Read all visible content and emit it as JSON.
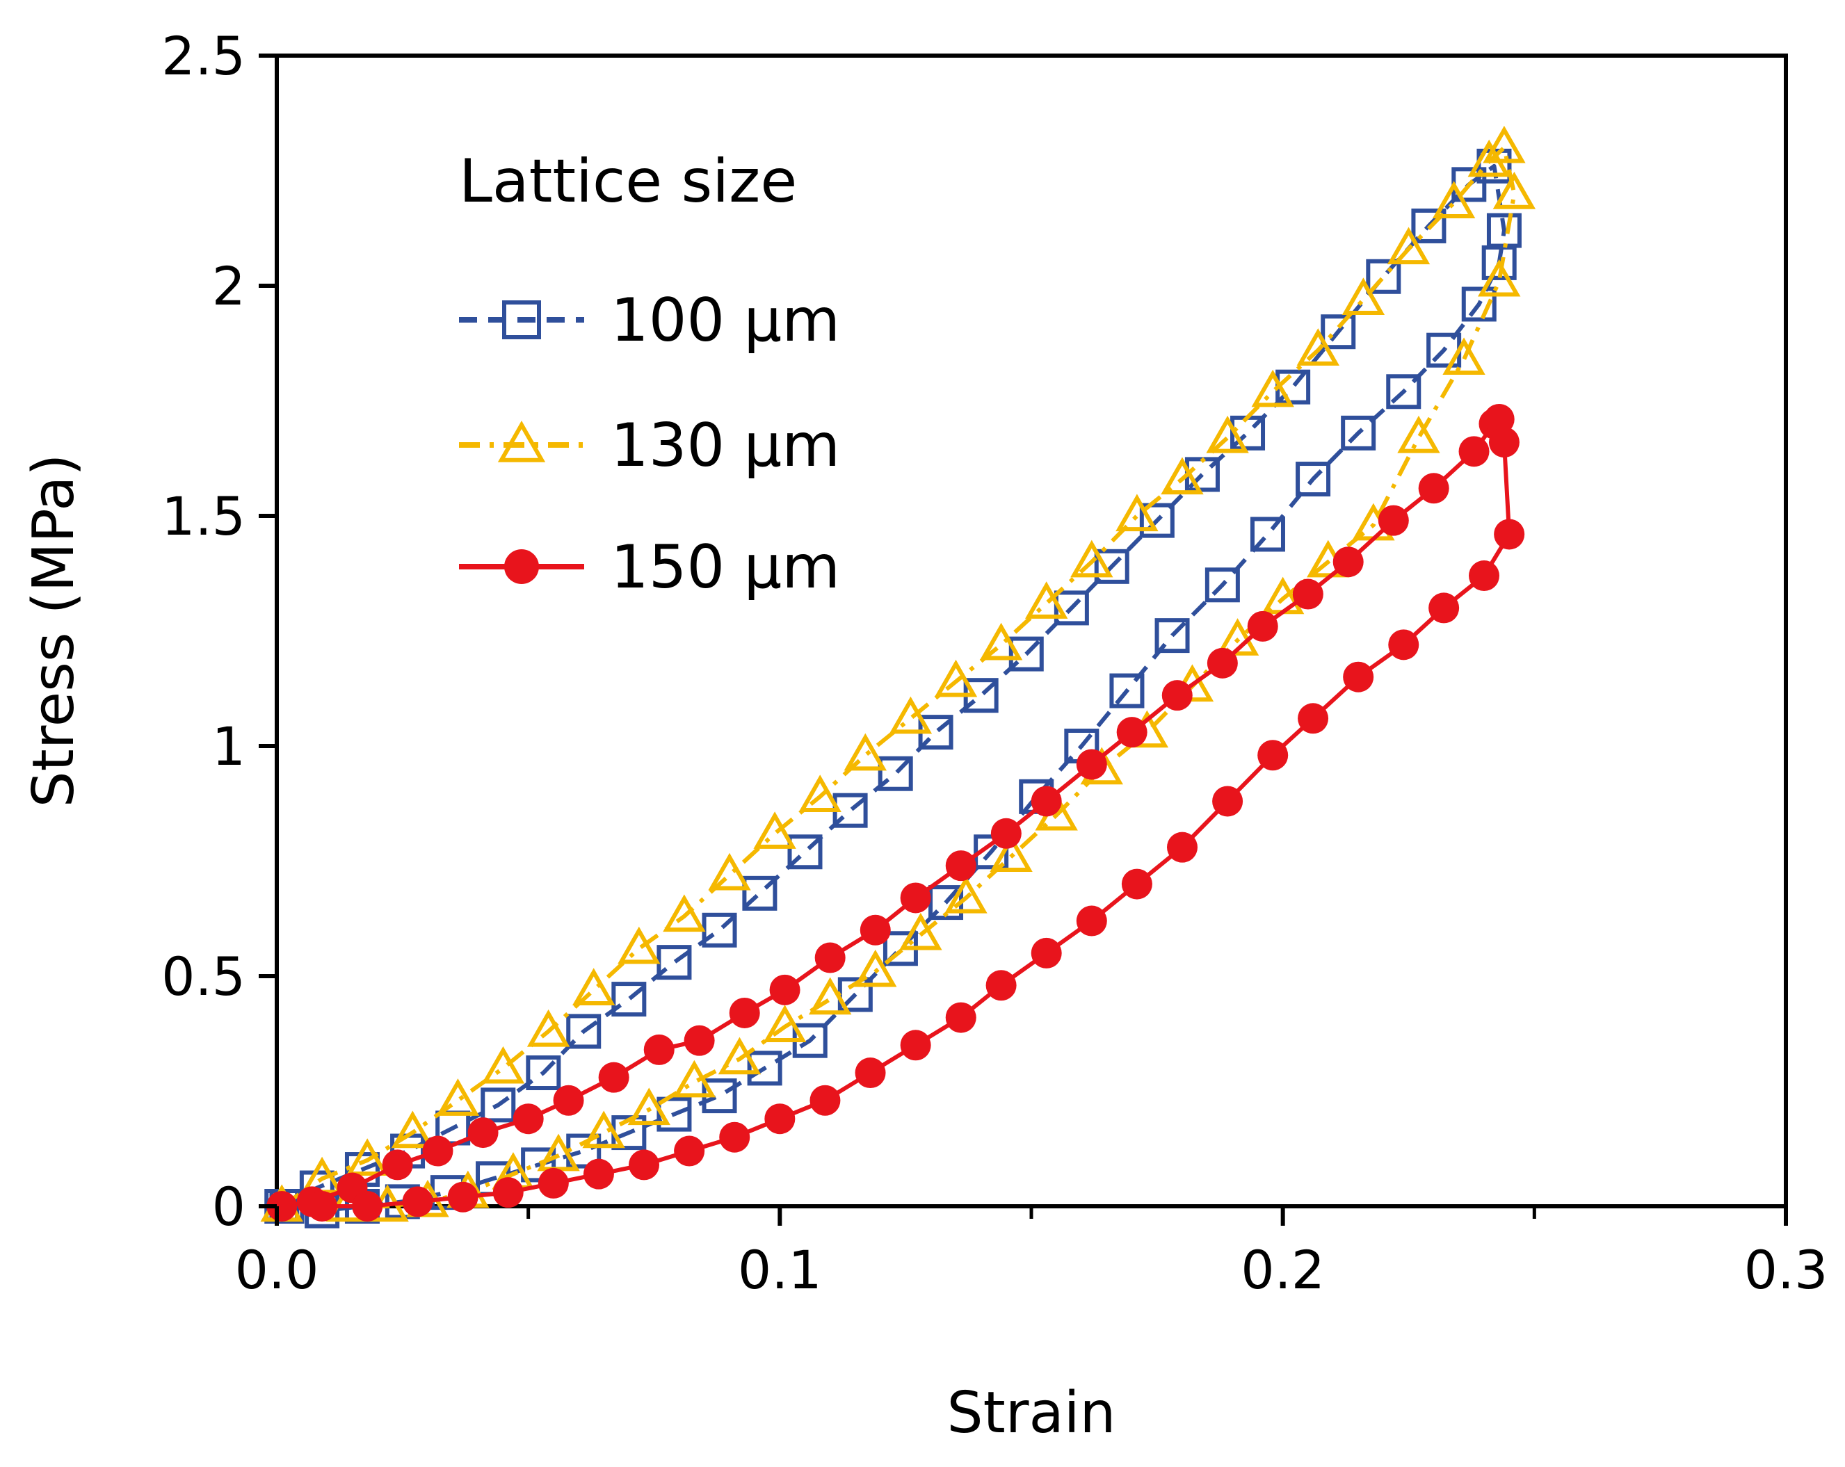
{
  "chart_data": {
    "type": "line",
    "xlabel": "Strain",
    "ylabel": "Stress (MPa)",
    "xlim": [
      0,
      0.3
    ],
    "ylim": [
      0,
      2.5
    ],
    "x_ticks": [
      "0.0",
      "0.1",
      "0.2",
      "0.3"
    ],
    "y_ticks": [
      "0",
      "0.5",
      "1",
      "1.5",
      "2",
      "2.5"
    ],
    "grid": false,
    "legend": {
      "title": "Lattice size",
      "position": "top-left"
    },
    "series": [
      {
        "name": "100 µm",
        "color": "#2F4F9B",
        "marker": "open-square",
        "line": "dashed",
        "x": [
          0.001,
          0.008,
          0.017,
          0.026,
          0.035,
          0.044,
          0.053,
          0.061,
          0.07,
          0.079,
          0.088,
          0.096,
          0.105,
          0.114,
          0.123,
          0.131,
          0.14,
          0.149,
          0.158,
          0.166,
          0.175,
          0.184,
          0.193,
          0.202,
          0.211,
          0.22,
          0.229,
          0.237,
          0.242,
          0.244,
          0.243,
          0.239,
          0.232,
          0.224,
          0.215,
          0.206,
          0.197,
          0.188,
          0.178,
          0.169,
          0.16,
          0.151,
          0.142,
          0.133,
          0.124,
          0.115,
          0.106,
          0.097,
          0.088,
          0.079,
          0.07,
          0.061,
          0.052,
          0.043,
          0.034,
          0.025,
          0.017,
          0.009,
          0.002
        ],
        "y": [
          0.0,
          0.04,
          0.08,
          0.12,
          0.17,
          0.22,
          0.29,
          0.38,
          0.45,
          0.53,
          0.6,
          0.68,
          0.77,
          0.86,
          0.94,
          1.03,
          1.11,
          1.2,
          1.3,
          1.39,
          1.49,
          1.59,
          1.68,
          1.78,
          1.9,
          2.02,
          2.13,
          2.22,
          2.26,
          2.12,
          2.05,
          1.96,
          1.86,
          1.77,
          1.68,
          1.58,
          1.46,
          1.35,
          1.24,
          1.12,
          1.0,
          0.89,
          0.77,
          0.66,
          0.56,
          0.46,
          0.36,
          0.3,
          0.24,
          0.2,
          0.16,
          0.12,
          0.09,
          0.06,
          0.03,
          0.01,
          0.0,
          -0.01,
          0.0
        ]
      },
      {
        "name": "130 µm",
        "color": "#F5B800",
        "marker": "open-triangle",
        "line": "dash-dot",
        "x": [
          0.001,
          0.009,
          0.018,
          0.027,
          0.036,
          0.045,
          0.054,
          0.063,
          0.072,
          0.081,
          0.09,
          0.099,
          0.108,
          0.117,
          0.126,
          0.135,
          0.144,
          0.153,
          0.162,
          0.171,
          0.18,
          0.189,
          0.198,
          0.207,
          0.216,
          0.225,
          0.234,
          0.241,
          0.244,
          0.246,
          0.243,
          0.236,
          0.227,
          0.218,
          0.209,
          0.2,
          0.191,
          0.182,
          0.173,
          0.164,
          0.155,
          0.146,
          0.137,
          0.128,
          0.119,
          0.11,
          0.101,
          0.092,
          0.083,
          0.074,
          0.065,
          0.056,
          0.047,
          0.038,
          0.03,
          0.022,
          0.014
        ],
        "y": [
          0.0,
          0.06,
          0.1,
          0.16,
          0.23,
          0.3,
          0.38,
          0.47,
          0.56,
          0.63,
          0.72,
          0.81,
          0.89,
          0.98,
          1.06,
          1.14,
          1.22,
          1.31,
          1.4,
          1.5,
          1.58,
          1.67,
          1.77,
          1.86,
          1.97,
          2.08,
          2.18,
          2.27,
          2.3,
          2.2,
          2.01,
          1.84,
          1.67,
          1.48,
          1.4,
          1.32,
          1.23,
          1.13,
          1.03,
          0.95,
          0.85,
          0.76,
          0.67,
          0.59,
          0.51,
          0.45,
          0.39,
          0.32,
          0.27,
          0.21,
          0.16,
          0.11,
          0.07,
          0.03,
          0.01,
          0.0,
          0.0
        ]
      },
      {
        "name": "150 µm",
        "color": "#E8141C",
        "marker": "filled-circle",
        "line": "solid",
        "x": [
          0.001,
          0.007,
          0.015,
          0.024,
          0.032,
          0.041,
          0.05,
          0.058,
          0.067,
          0.076,
          0.084,
          0.093,
          0.101,
          0.11,
          0.119,
          0.127,
          0.136,
          0.145,
          0.153,
          0.162,
          0.17,
          0.179,
          0.188,
          0.196,
          0.205,
          0.213,
          0.222,
          0.23,
          0.238,
          0.242,
          0.243,
          0.244,
          0.245,
          0.24,
          0.232,
          0.224,
          0.215,
          0.206,
          0.198,
          0.189,
          0.18,
          0.171,
          0.162,
          0.153,
          0.144,
          0.136,
          0.127,
          0.118,
          0.109,
          0.1,
          0.091,
          0.082,
          0.073,
          0.064,
          0.055,
          0.046,
          0.037,
          0.028,
          0.018,
          0.009
        ],
        "y": [
          0.0,
          0.01,
          0.04,
          0.09,
          0.12,
          0.16,
          0.19,
          0.23,
          0.28,
          0.34,
          0.36,
          0.42,
          0.47,
          0.54,
          0.6,
          0.67,
          0.74,
          0.81,
          0.88,
          0.96,
          1.03,
          1.11,
          1.18,
          1.26,
          1.33,
          1.4,
          1.49,
          1.56,
          1.64,
          1.7,
          1.71,
          1.66,
          1.46,
          1.37,
          1.3,
          1.22,
          1.15,
          1.06,
          0.98,
          0.88,
          0.78,
          0.7,
          0.62,
          0.55,
          0.48,
          0.41,
          0.35,
          0.29,
          0.23,
          0.19,
          0.15,
          0.12,
          0.09,
          0.07,
          0.05,
          0.03,
          0.02,
          0.01,
          0.0,
          0.0
        ]
      }
    ]
  }
}
